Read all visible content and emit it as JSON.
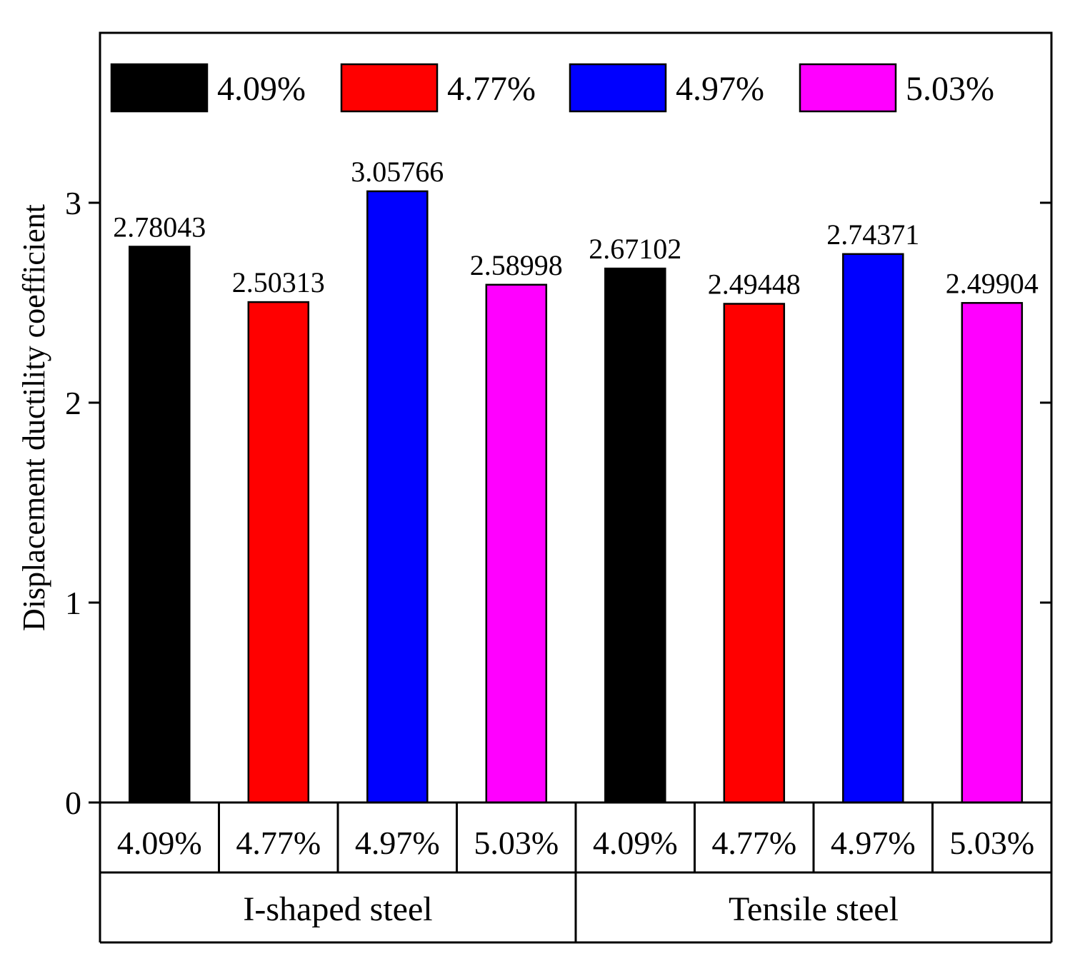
{
  "chart_data": {
    "type": "bar",
    "ylabel": "Displacement ductility coefficient",
    "ylim": [
      0,
      3.85
    ],
    "yticks": [
      0,
      1,
      2,
      3
    ],
    "grid": false,
    "legend_position": "top",
    "groups": [
      {
        "name": "I-shaped steel",
        "categories": [
          "4.09%",
          "4.77%",
          "4.97%",
          "5.03%"
        ],
        "values": [
          2.78043,
          2.50313,
          3.05766,
          2.58998
        ],
        "value_labels": [
          "2.78043",
          "2.50313",
          "3.05766",
          "2.58998"
        ]
      },
      {
        "name": "Tensile steel",
        "categories": [
          "4.09%",
          "4.77%",
          "4.97%",
          "5.03%"
        ],
        "values": [
          2.67102,
          2.49448,
          2.74371,
          2.49904
        ],
        "value_labels": [
          "2.67102",
          "2.49448",
          "2.74371",
          "2.49904"
        ]
      }
    ],
    "legend": [
      {
        "label": "4.09%",
        "color": "#000000"
      },
      {
        "label": "4.77%",
        "color": "#ff0000"
      },
      {
        "label": "4.97%",
        "color": "#0000ff"
      },
      {
        "label": "5.03%",
        "color": "#ff00ff"
      }
    ]
  }
}
